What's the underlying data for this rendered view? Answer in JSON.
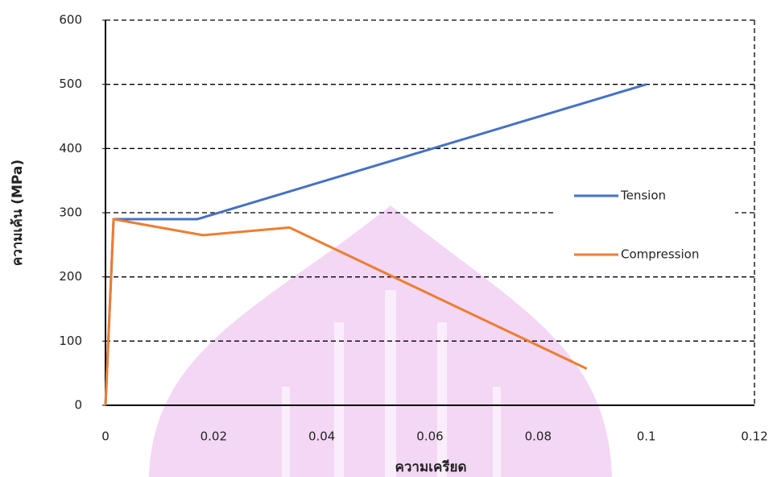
{
  "chart_data": {
    "type": "line",
    "x_label": "ความเครียด",
    "y_label": "ความเค้น (MPa)",
    "series": [
      {
        "name": "Tension",
        "color": "#4472c4",
        "x": [
          0,
          0.0015,
          0.017,
          0.1
        ],
        "values": [
          0,
          290,
          290,
          500
        ]
      },
      {
        "name": "Compression",
        "color": "#ed7d31",
        "x": [
          0,
          0.0015,
          0.018,
          0.034,
          0.089
        ],
        "values": [
          0,
          290,
          265,
          277,
          57
        ]
      }
    ],
    "xlim": [
      0,
      0.12
    ],
    "xticks": [
      0,
      0.02,
      0.04,
      0.06,
      0.08,
      0.1,
      0.12
    ],
    "ylim": [
      0,
      600
    ],
    "yticks": [
      0,
      100,
      200,
      300,
      400,
      500,
      600
    ],
    "grid": true,
    "legend": "right"
  }
}
